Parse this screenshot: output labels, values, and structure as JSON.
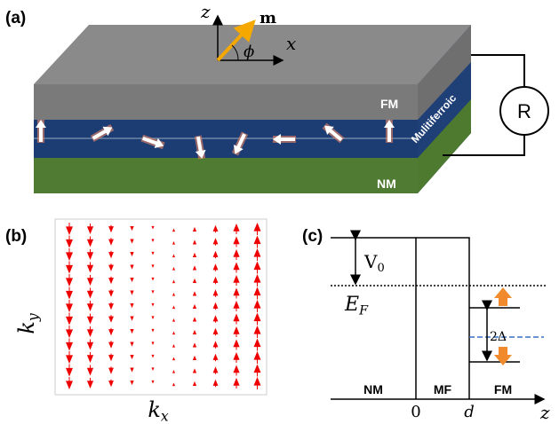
{
  "panel_a": {
    "label": "(a)",
    "axis_z": "z",
    "axis_x": "x",
    "moment": "m",
    "angle": "ϕ",
    "layers": [
      "FM",
      "Mulitiferroic",
      "NM"
    ],
    "resistor": "R"
  },
  "panel_b": {
    "label": "(b)",
    "y_label": {
      "base": "k",
      "sub": "y"
    },
    "x_label": {
      "base": "k",
      "sub": "x"
    }
  },
  "panel_c": {
    "label": "(c)",
    "barrier": {
      "base": "V",
      "sub": "0"
    },
    "fermi": {
      "base": "E",
      "sub": "F"
    },
    "gap": "2Δ",
    "regions": [
      "NM",
      "MF",
      "FM"
    ],
    "ticks": [
      "0",
      "d"
    ],
    "axis": "z"
  }
}
